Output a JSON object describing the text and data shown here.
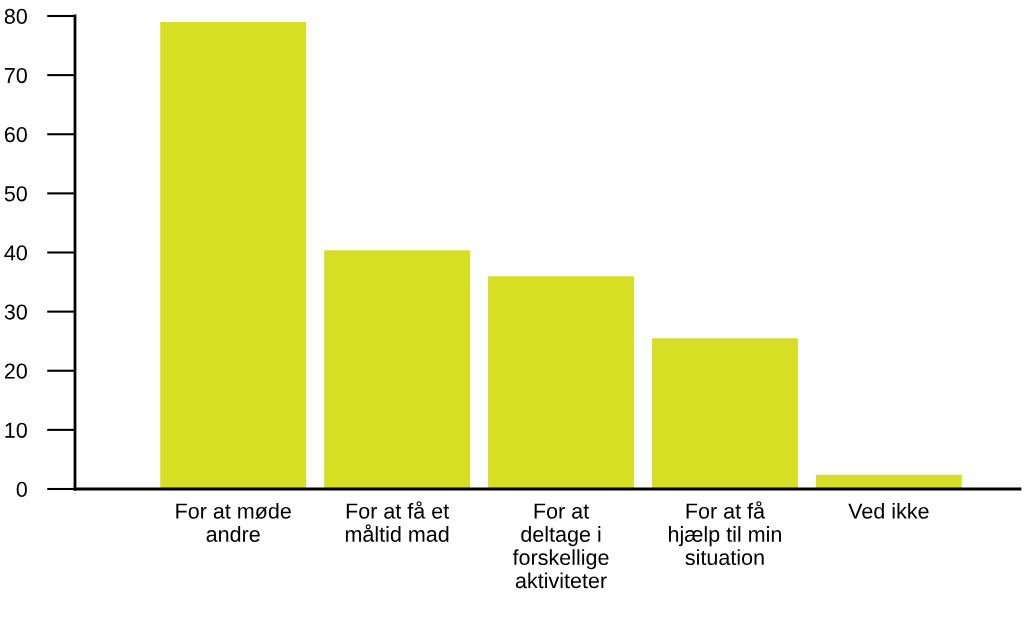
{
  "chart_data": {
    "type": "bar",
    "categories": [
      "For at møde\nandre",
      "For at få et\nmåltid mad",
      "For at\ndeltage i\nforskellige\naktiviteter",
      "For at få\nhjælp til min\nsituation",
      "Ved ikke"
    ],
    "values": [
      79,
      40.4,
      36,
      25.5,
      2.4
    ],
    "color": "#d6df23",
    "ylim": [
      0,
      80
    ],
    "yticks": [
      0,
      10,
      20,
      30,
      40,
      50,
      60,
      70,
      80
    ],
    "grid": false,
    "legend": false
  }
}
